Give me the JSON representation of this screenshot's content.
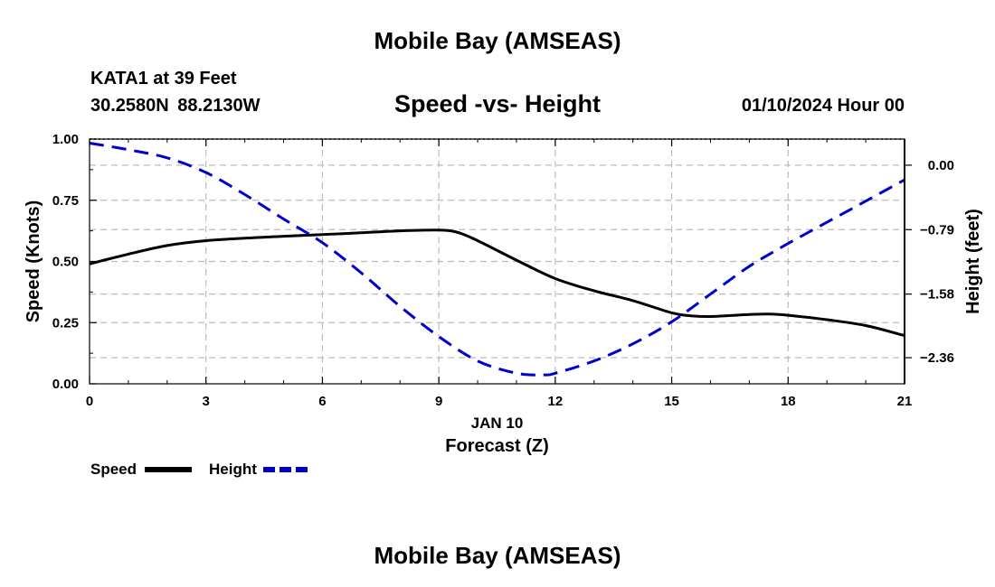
{
  "header": {
    "title": "Mobile Bay (AMSEAS)",
    "station": "KATA1 at 39 Feet",
    "coords": "30.2580N 88.2130W",
    "date": "01/10/2024 Hour 00"
  },
  "footer": {
    "title": "Mobile Bay (AMSEAS)"
  },
  "chart_data": {
    "type": "line",
    "title": "Speed -vs- Height",
    "xlabel": "Forecast (Z)",
    "xsublabel": "JAN 10",
    "ylabel": "Speed (Knots)",
    "y2label": "Height (feet)",
    "xlim": [
      0,
      21
    ],
    "ylim": [
      0,
      1
    ],
    "y2lim": [
      -2.68,
      0.32
    ],
    "xticks": [
      0,
      3,
      6,
      9,
      12,
      15,
      18,
      21
    ],
    "xtick_labels": [
      "0",
      "3",
      "6",
      "9",
      "12",
      "15",
      "18",
      "21"
    ],
    "yticks": [
      0,
      0.25,
      0.5,
      0.75,
      1.0
    ],
    "ytick_labels": [
      "0.00",
      "0.25",
      "0.50",
      "0.75",
      "1.00"
    ],
    "y2ticks": [
      0.0,
      -0.79,
      -1.58,
      -2.36
    ],
    "y2tick_labels": [
      "0.00",
      "−0.79",
      "−1.58",
      "−2.36"
    ],
    "grid": true,
    "legend_position": "bottom-left",
    "colors": {
      "speed": "#000000",
      "height": "#0000cc",
      "grid": "#bbbbbb"
    },
    "series": [
      {
        "name": "Speed",
        "axis": "left",
        "style": "solid",
        "x": [
          0,
          1,
          2,
          3,
          4,
          5,
          6,
          7,
          8,
          9,
          9.5,
          10,
          11,
          12,
          13,
          14,
          15,
          15.5,
          16,
          17,
          17.5,
          18,
          19,
          20,
          21
        ],
        "values": [
          0.49,
          0.53,
          0.565,
          0.585,
          0.595,
          0.603,
          0.61,
          0.617,
          0.625,
          0.628,
          0.618,
          0.585,
          0.505,
          0.43,
          0.38,
          0.34,
          0.29,
          0.278,
          0.275,
          0.283,
          0.285,
          0.28,
          0.262,
          0.238,
          0.197
        ]
      },
      {
        "name": "Height",
        "axis": "right",
        "style": "dashed",
        "x": [
          0,
          1,
          2,
          3,
          4,
          5,
          6,
          7,
          8,
          9,
          10,
          11,
          11.7,
          12,
          13,
          14,
          15,
          16,
          17,
          18,
          19,
          20,
          21
        ],
        "values": [
          0.27,
          0.19,
          0.09,
          -0.09,
          -0.36,
          -0.66,
          -0.95,
          -1.32,
          -1.73,
          -2.1,
          -2.4,
          -2.55,
          -2.57,
          -2.55,
          -2.4,
          -2.19,
          -1.92,
          -1.58,
          -1.24,
          -0.96,
          -0.7,
          -0.44,
          -0.18
        ]
      }
    ]
  }
}
